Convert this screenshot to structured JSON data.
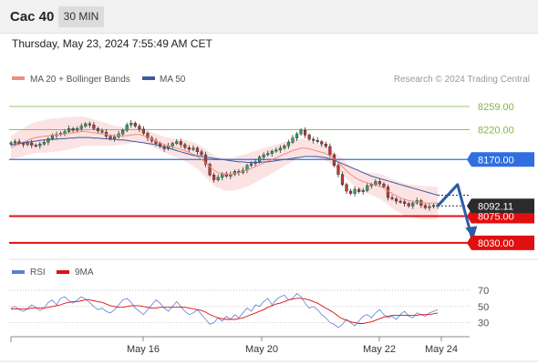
{
  "header": {
    "symbol": "Cac 40",
    "timeframe": "30 MIN"
  },
  "timestamp": "Thursday, May 23, 2024 7:55:49 AM CET",
  "legend": {
    "main": [
      {
        "label": "MA 20 + Bollinger Bands",
        "color": "#f28b82"
      },
      {
        "label": "MA 50",
        "color": "#3d5a9e"
      }
    ],
    "rsi": [
      {
        "label": "RSI",
        "color": "#5b7fd6"
      },
      {
        "label": "9MA",
        "color": "#e01010"
      }
    ]
  },
  "watermark": "Research © 2024 Trading Central",
  "chart_data": {
    "type": "candlestick",
    "x_tick_labels": [
      "May 16",
      "May 20",
      "May 22",
      "May 24"
    ],
    "y_range": [
      8010,
      8285
    ],
    "levels": [
      {
        "value": 8259.0,
        "label": "8259.00",
        "kind": "resistance",
        "color": "#7db84a"
      },
      {
        "value": 8220.0,
        "label": "8220.00",
        "kind": "resistance",
        "color": "#7db84a"
      },
      {
        "value": 8170.0,
        "label": "8170.00",
        "kind": "pivot",
        "color": "#2f6fe0"
      },
      {
        "value": 8075.0,
        "label": "8075.00",
        "kind": "support",
        "color": "#e01010"
      },
      {
        "value": 8030.0,
        "label": "8030.00",
        "kind": "support",
        "color": "#e01010"
      }
    ],
    "last_price": {
      "value": 8092.11,
      "label": "8092.11"
    },
    "close_path": [
      8198,
      8200,
      8197,
      8195,
      8198,
      8194,
      8193,
      8196,
      8199,
      8205,
      8210,
      8212,
      8214,
      8217,
      8222,
      8219,
      8222,
      8226,
      8230,
      8228,
      8222,
      8218,
      8216,
      8209,
      8205,
      8208,
      8213,
      8219,
      8228,
      8231,
      8226,
      8221,
      8214,
      8206,
      8201,
      8197,
      8192,
      8188,
      8193,
      8197,
      8200,
      8195,
      8190,
      8187,
      8189,
      8183,
      8178,
      8162,
      8144,
      8136,
      8140,
      8146,
      8142,
      8145,
      8150,
      8148,
      8152,
      8160,
      8163,
      8166,
      8174,
      8178,
      8180,
      8184,
      8186,
      8189,
      8193,
      8199,
      8206,
      8213,
      8219,
      8211,
      8204,
      8202,
      8200,
      8196,
      8192,
      8178,
      8160,
      8145,
      8128,
      8117,
      8113,
      8120,
      8116,
      8118,
      8126,
      8128,
      8133,
      8129,
      8124,
      8106,
      8104,
      8100,
      8099,
      8096,
      8092,
      8097,
      8101,
      8093,
      8089,
      8091,
      8093,
      8092
    ],
    "ma20_path": [
      8190,
      8193,
      8196,
      8199,
      8202,
      8205,
      8207,
      8208,
      8209,
      8210,
      8211,
      8211,
      8212,
      8213,
      8214,
      8215,
      8216,
      8217,
      8217,
      8216,
      8215,
      8214,
      8213,
      8212,
      8211,
      8210,
      8210,
      8210,
      8210,
      8211,
      8212,
      8212,
      8210,
      8207,
      8204,
      8201,
      8198,
      8195,
      8193,
      8191,
      8189,
      8187,
      8185,
      8182,
      8179,
      8175,
      8170,
      8164,
      8158,
      8152,
      8148,
      8146,
      8145,
      8145,
      8146,
      8148,
      8150,
      8152,
      8155,
      8158,
      8161,
      8164,
      8167,
      8170,
      8173,
      8176,
      8179,
      8182,
      8185,
      8187,
      8189,
      8189,
      8188,
      8186,
      8184,
      8182,
      8180,
      8176,
      8171,
      8165,
      8158,
      8151,
      8145,
      8140,
      8136,
      8133,
      8131,
      8129,
      8127,
      8125,
      8122,
      8117,
      8113,
      8109,
      8106,
      8103,
      8101,
      8100,
      8099,
      8098,
      8097,
      8097,
      8097,
      8097
    ],
    "ma50_path": [
      8194,
      8196,
      8197,
      8198,
      8199,
      8200,
      8201,
      8202,
      8203,
      8203,
      8204,
      8204,
      8205,
      8205,
      8206,
      8206,
      8207,
      8207,
      8207,
      8207,
      8206,
      8206,
      8205,
      8205,
      8204,
      8204,
      8203,
      8203,
      8202,
      8201,
      8200,
      8199,
      8198,
      8197,
      8196,
      8195,
      8193,
      8191,
      8189,
      8187,
      8185,
      8183,
      8181,
      8179,
      8177,
      8176,
      8175,
      8174,
      8173,
      8172,
      8171,
      8170,
      8169,
      8168,
      8167,
      8166,
      8166,
      8165,
      8165,
      8165,
      8165,
      8166,
      8166,
      8167,
      8168,
      8169,
      8170,
      8171,
      8172,
      8173,
      8174,
      8175,
      8175,
      8175,
      8175,
      8174,
      8173,
      8171,
      8169,
      8166,
      8163,
      8160,
      8157,
      8154,
      8151,
      8148,
      8145,
      8142,
      8140,
      8138,
      8136,
      8134,
      8132,
      8130,
      8128,
      8126,
      8124,
      8122,
      8120,
      8118,
      8116,
      8114,
      8112,
      8110
    ],
    "forecast": [
      {
        "x_frac": 0.955,
        "value": 8128
      },
      {
        "x_frac": 0.985,
        "value": 8040
      }
    ],
    "rsi": {
      "y_tick_labels": [
        "70",
        "50",
        "30"
      ],
      "y_tick_values": [
        70,
        50,
        30
      ],
      "y_range": [
        15,
        80
      ],
      "rsi_path": [
        48,
        50,
        46,
        44,
        47,
        52,
        49,
        45,
        48,
        55,
        58,
        52,
        60,
        62,
        57,
        54,
        58,
        62,
        59,
        55,
        50,
        46,
        48,
        44,
        42,
        46,
        52,
        58,
        60,
        55,
        48,
        44,
        40,
        46,
        52,
        58,
        54,
        48,
        44,
        50,
        56,
        50,
        44,
        40,
        42,
        46,
        40,
        34,
        28,
        30,
        36,
        32,
        38,
        34,
        40,
        36,
        42,
        48,
        44,
        52,
        50,
        56,
        60,
        52,
        58,
        62,
        64,
        58,
        60,
        66,
        62,
        54,
        48,
        50,
        46,
        40,
        36,
        30,
        28,
        24,
        28,
        34,
        30,
        26,
        32,
        38,
        40,
        36,
        42,
        46,
        40,
        36,
        38,
        34,
        40,
        44,
        38,
        36,
        42,
        40,
        38,
        42,
        44,
        46
      ],
      "ma9_path": [
        47,
        47,
        47,
        47,
        47,
        48,
        48,
        48,
        48,
        49,
        50,
        51,
        52,
        54,
        55,
        56,
        56,
        57,
        58,
        58,
        57,
        56,
        55,
        53,
        51,
        50,
        49,
        49,
        50,
        51,
        51,
        51,
        50,
        49,
        48,
        48,
        49,
        49,
        49,
        49,
        49,
        49,
        49,
        48,
        47,
        46,
        45,
        43,
        40,
        38,
        36,
        35,
        34,
        34,
        34,
        35,
        36,
        38,
        40,
        42,
        44,
        46,
        49,
        51,
        53,
        54,
        56,
        58,
        59,
        60,
        60,
        59,
        58,
        56,
        54,
        51,
        48,
        45,
        42,
        38,
        35,
        33,
        31,
        30,
        29,
        29,
        30,
        31,
        33,
        35,
        37,
        38,
        39,
        39,
        39,
        39,
        39,
        39,
        39,
        40,
        40,
        40,
        41,
        42
      ]
    }
  }
}
